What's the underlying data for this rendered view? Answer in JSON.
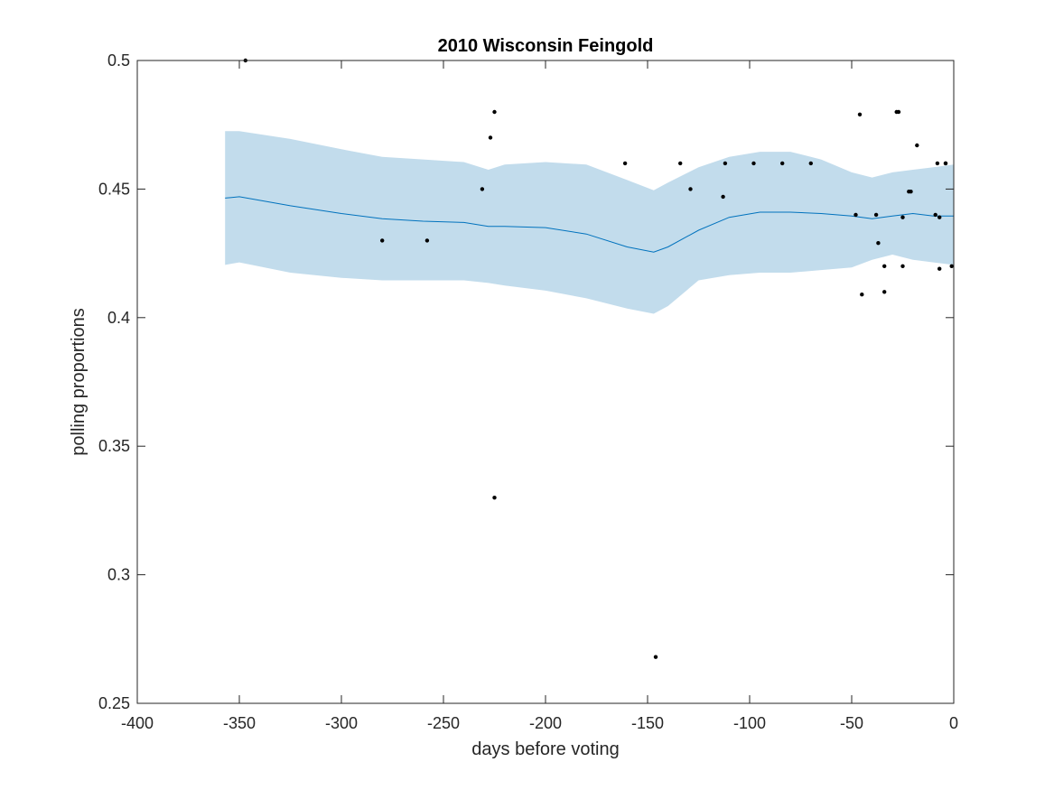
{
  "chart_data": {
    "type": "scatter",
    "title": "2010 Wisconsin Feingold",
    "xlabel": "days before voting",
    "ylabel": "polling proportions",
    "xlim": [
      -400,
      0
    ],
    "ylim": [
      0.25,
      0.5
    ],
    "xticks": [
      -400,
      -350,
      -300,
      -250,
      -200,
      -150,
      -100,
      -50,
      0
    ],
    "xtick_labels": [
      "-400",
      "-350",
      "-300",
      "-250",
      "-200",
      "-150",
      "-100",
      "-50",
      "0"
    ],
    "yticks": [
      0.25,
      0.3,
      0.35,
      0.4,
      0.45,
      0.5
    ],
    "ytick_labels": [
      "0.25",
      "0.3",
      "0.35",
      "0.4",
      "0.45",
      "0.5"
    ],
    "grid": false,
    "colors": {
      "band": "#c2dcec",
      "line": "#0072bd",
      "points": "#000000",
      "axes": "#262626"
    },
    "band": {
      "x": [
        -357,
        -350,
        -325,
        -300,
        -280,
        -260,
        -240,
        -228,
        -220,
        -200,
        -180,
        -160,
        -147,
        -140,
        -125,
        -110,
        -95,
        -80,
        -65,
        -50,
        -40,
        -30,
        -20,
        -10,
        0
      ],
      "upper": [
        0.4725,
        0.4725,
        0.4695,
        0.4655,
        0.4625,
        0.4615,
        0.4605,
        0.4575,
        0.4595,
        0.4605,
        0.4595,
        0.4535,
        0.4495,
        0.4525,
        0.4585,
        0.4625,
        0.4645,
        0.4645,
        0.4615,
        0.4565,
        0.4545,
        0.4565,
        0.4575,
        0.4585,
        0.4595
      ],
      "lower": [
        0.4205,
        0.4215,
        0.4175,
        0.4155,
        0.4145,
        0.4145,
        0.4145,
        0.4135,
        0.4125,
        0.4105,
        0.4075,
        0.4035,
        0.4015,
        0.4045,
        0.4145,
        0.4165,
        0.4175,
        0.4175,
        0.4185,
        0.4195,
        0.4225,
        0.4245,
        0.4225,
        0.4215,
        0.4205
      ]
    },
    "series": [
      {
        "type": "line",
        "x": [
          -357,
          -350,
          -325,
          -300,
          -280,
          -260,
          -240,
          -228,
          -220,
          -200,
          -180,
          -160,
          -147,
          -140,
          -125,
          -110,
          -95,
          -80,
          -65,
          -50,
          -40,
          -30,
          -20,
          -10,
          0
        ],
        "y": [
          0.4465,
          0.447,
          0.4435,
          0.4405,
          0.4385,
          0.4375,
          0.437,
          0.4355,
          0.4355,
          0.435,
          0.4325,
          0.4275,
          0.4255,
          0.4275,
          0.434,
          0.439,
          0.441,
          0.441,
          0.4405,
          0.4395,
          0.4385,
          0.4395,
          0.4405,
          0.4395,
          0.4395
        ]
      },
      {
        "type": "scatter",
        "x": [
          -347,
          -280,
          -258,
          -231,
          -227,
          -225,
          -225,
          -161,
          -146,
          -134,
          -129,
          -113,
          -112,
          -98,
          -84,
          -70,
          -48,
          -46,
          -45,
          -38,
          -37,
          -34,
          -34,
          -27,
          -25,
          -25,
          -22,
          -21,
          -18,
          -9,
          -8,
          -7,
          -7,
          -4
        ],
        "y": [
          0.5,
          0.43,
          0.43,
          0.45,
          0.47,
          0.48,
          0.33,
          0.46,
          0.268,
          0.46,
          0.45,
          0.447,
          0.46,
          0.46,
          0.46,
          0.46,
          0.44,
          0.479,
          0.409,
          0.44,
          0.429,
          0.42,
          0.41,
          0.48,
          0.42,
          0.439,
          0.449,
          0.449,
          0.467,
          0.44,
          0.46,
          0.419,
          0.439,
          0.46
        ]
      },
      {
        "type": "scatter",
        "x": [
          -28,
          -4,
          -1
        ],
        "y": [
          0.48,
          0.46,
          0.42
        ]
      }
    ]
  }
}
